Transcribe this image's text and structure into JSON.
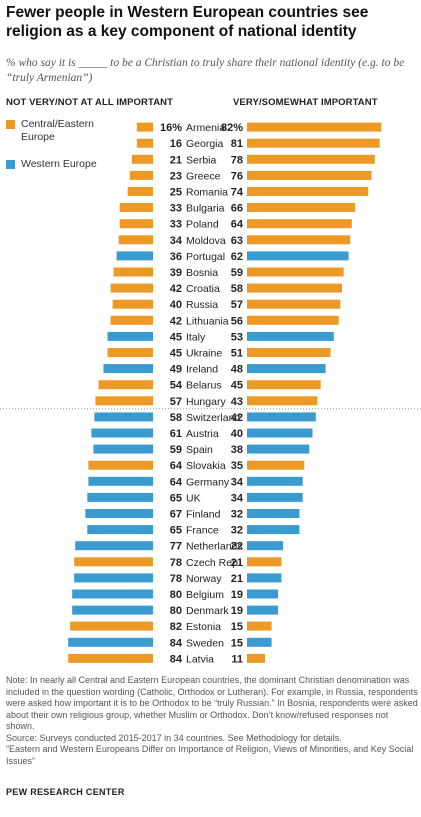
{
  "title": "Fewer people in Western European countries see religion as a key component of national identity",
  "subtitle": "% who say it is _____ to be a Christian to truly share their national identity (e.g. to be “truly Armenian”)",
  "left_header": "NOT VERY/NOT AT ALL IMPORTANT",
  "right_header": "VERY/SOMEWHAT IMPORTANT",
  "legend": [
    {
      "label": "Central/Eastern Europe",
      "color": "#ec9a25"
    },
    {
      "label": "Western Europe",
      "color": "#3a9bd0"
    }
  ],
  "colors": {
    "central_eastern": "#ec9a25",
    "western": "#3a9bd0"
  },
  "chart_data": {
    "type": "bar",
    "categories": [
      "Armenia",
      "Georgia",
      "Serbia",
      "Greece",
      "Romania",
      "Bulgaria",
      "Poland",
      "Moldova",
      "Portugal",
      "Bosnia",
      "Croatia",
      "Russia",
      "Lithuania",
      "Italy",
      "Ukraine",
      "Ireland",
      "Belarus",
      "Hungary",
      "Switzerland",
      "Austria",
      "Spain",
      "Slovakia",
      "Germany",
      "UK",
      "Finland",
      "France",
      "Netherlands",
      "Czech Rep.",
      "Norway",
      "Belgium",
      "Denmark",
      "Estonia",
      "Sweden",
      "Latvia"
    ],
    "region": [
      "CE",
      "CE",
      "CE",
      "CE",
      "CE",
      "CE",
      "CE",
      "CE",
      "W",
      "CE",
      "CE",
      "CE",
      "CE",
      "W",
      "CE",
      "W",
      "CE",
      "CE",
      "W",
      "W",
      "W",
      "CE",
      "W",
      "W",
      "W",
      "W",
      "W",
      "CE",
      "W",
      "W",
      "W",
      "CE",
      "W",
      "CE"
    ],
    "series": [
      {
        "name": "NOT VERY/NOT AT ALL IMPORTANT",
        "values": [
          16,
          16,
          21,
          23,
          25,
          33,
          33,
          34,
          36,
          39,
          42,
          40,
          42,
          45,
          45,
          49,
          54,
          57,
          58,
          61,
          59,
          64,
          64,
          65,
          67,
          65,
          77,
          78,
          78,
          80,
          80,
          82,
          84,
          84
        ]
      },
      {
        "name": "VERY/SOMEWHAT IMPORTANT",
        "values": [
          82,
          81,
          78,
          76,
          74,
          66,
          64,
          63,
          62,
          59,
          58,
          57,
          56,
          53,
          51,
          48,
          45,
          43,
          42,
          40,
          38,
          35,
          34,
          34,
          32,
          32,
          22,
          21,
          21,
          19,
          19,
          15,
          15,
          11
        ]
      }
    ],
    "first_label_suffix": "%",
    "ylim": [
      0,
      100
    ]
  },
  "footer": {
    "note": "Note: In nearly all Central and Eastern European countries, the dominant Christian denomination was included in the question wording (Catholic, Orthodox or Lutheran). For example, in Russia, respondents were asked how important it is to be Orthodox to be “truly Russian.” In Bosnia, respondents were asked about their own religious group, whether Muslim or Orthodox. Don’t know/refused responses not shown.",
    "source": "Source: Surveys conducted 2015-2017 in 34 countries. See Methodology for details.",
    "report": "“Eastern and Western Europeans Differ on Importance of Religion, Views of Minorities, and Key Social Issues”",
    "brand": "PEW RESEARCH CENTER"
  }
}
